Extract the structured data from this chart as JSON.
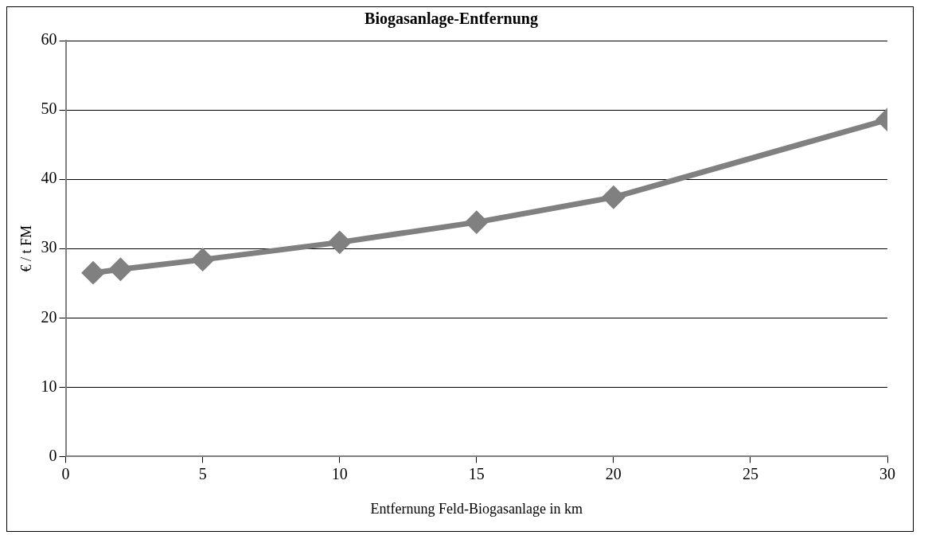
{
  "chart_data": {
    "type": "line",
    "title": "Biogasanlage-Entfernung",
    "xlabel": "Entfernung Feld-Biogasanlage in km",
    "ylabel": "€ / t FM",
    "x": [
      1,
      2,
      5,
      10,
      15,
      20,
      30
    ],
    "series": [
      {
        "color": "#808080",
        "values": [
          26.5,
          27.0,
          28.4,
          30.9,
          33.8,
          37.4,
          48.6
        ]
      }
    ],
    "xlim": [
      0,
      30
    ],
    "xticks": [
      0,
      5,
      10,
      15,
      20,
      25,
      30
    ],
    "ylim": [
      0,
      60
    ],
    "yticks": [
      0,
      10,
      20,
      30,
      40,
      50,
      60
    ],
    "grid": "y",
    "legend": false,
    "marker": "diamond",
    "line_style": "solid"
  }
}
